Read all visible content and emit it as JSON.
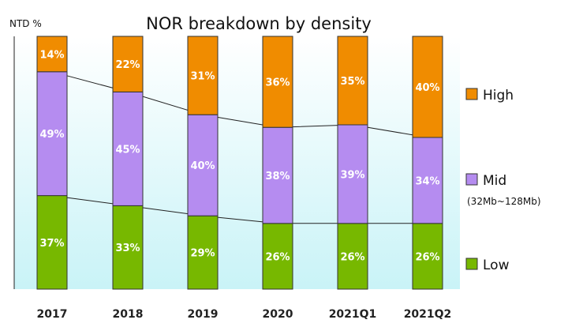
{
  "chart_data": {
    "type": "bar",
    "stacked": true,
    "title": "NOR breakdown by density",
    "ylabel": "NTD %",
    "xlabel": "",
    "ylim": [
      0,
      100
    ],
    "categories": [
      "2017",
      "2018",
      "2019",
      "2020",
      "2021Q1",
      "2021Q2"
    ],
    "series": [
      {
        "name": "Low",
        "values": [
          37,
          33,
          29,
          26,
          26,
          26
        ],
        "labels": [
          "37%",
          "33%",
          "29%",
          "26%",
          "26%",
          "26%"
        ],
        "color": "#77b800"
      },
      {
        "name": "Mid",
        "sublabel": "(32Mb~128Mb)",
        "values": [
          49,
          45,
          40,
          38,
          39,
          34
        ],
        "labels": [
          "49%",
          "45%",
          "40%",
          "38%",
          "39%",
          "34%"
        ],
        "color": "#b58cf0"
      },
      {
        "name": "High",
        "values": [
          14,
          22,
          31,
          36,
          35,
          40
        ],
        "labels": [
          "14%",
          "22%",
          "31%",
          "36%",
          "35%",
          "40%"
        ],
        "color": "#f08c00"
      }
    ],
    "connector_lines": true,
    "background": "gradient white to light cyan",
    "legend_position": "right"
  }
}
